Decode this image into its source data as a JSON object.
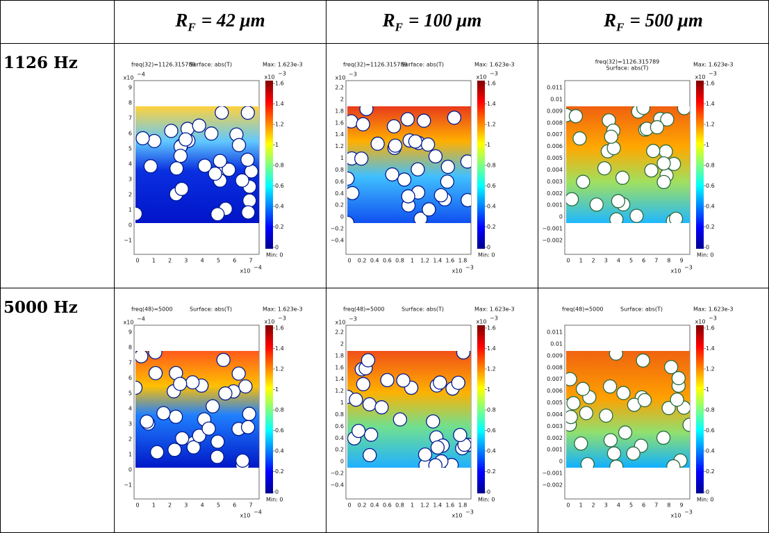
{
  "table": {
    "headers": [
      {
        "symbol": "R",
        "sub": "F",
        "rest": "= 42 μm"
      },
      {
        "symbol": "R",
        "sub": "F",
        "rest": "= 100 μm"
      },
      {
        "symbol": "R",
        "sub": "F",
        "rest": "= 500 μm"
      }
    ],
    "rows": [
      {
        "label": "1126 Hz",
        "freq": "freq(32)=1126.315789"
      },
      {
        "label": "5000 Hz",
        "freq": "freq(48)=5000"
      }
    ]
  },
  "plot": {
    "surface": "Surface: abs(T)",
    "max": "Max: 1.623e-3",
    "min": "Min: 0",
    "exp_base": "x10",
    "colorbar_exp": "−3",
    "colorbar_ticks": [
      "1.6",
      "1.4",
      "1.2",
      "1",
      "0.8",
      "0.6",
      "0.4",
      "0.2",
      "0"
    ]
  },
  "columns": [
    {
      "y_exp": "−4",
      "y_ticks": [
        "9",
        "8",
        "7",
        "6",
        "5",
        "4",
        "3",
        "2",
        "1",
        "0",
        "−1"
      ],
      "x_exp": "−4",
      "x_ticks": [
        "0",
        "1",
        "2",
        "3",
        "4",
        "5",
        "6",
        "7"
      ]
    },
    {
      "y_exp": "−3",
      "y_ticks": [
        "2.2",
        "2",
        "1.8",
        "1.6",
        "1.4",
        "1.2",
        "1",
        "0.8",
        "0.6",
        "0.4",
        "0.2",
        "0",
        "−0.2",
        "−0.4"
      ],
      "x_exp": "−3",
      "x_ticks": [
        "0",
        "0.2",
        "0.4",
        "0.6",
        "0.8",
        "1",
        "1.2",
        "1.4",
        "1.6",
        "1.8"
      ]
    },
    {
      "y_ticks": [
        "0.011",
        "0.01",
        "0.009",
        "0.008",
        "0.007",
        "0.006",
        "0.005",
        "0.004",
        "0.003",
        "0.002",
        "0.001",
        "0",
        "−0.001",
        "−0.002"
      ],
      "x_exp": "−3",
      "x_ticks": [
        "0",
        "1",
        "2",
        "3",
        "4",
        "5",
        "6",
        "7",
        "8",
        "9"
      ]
    }
  ]
}
